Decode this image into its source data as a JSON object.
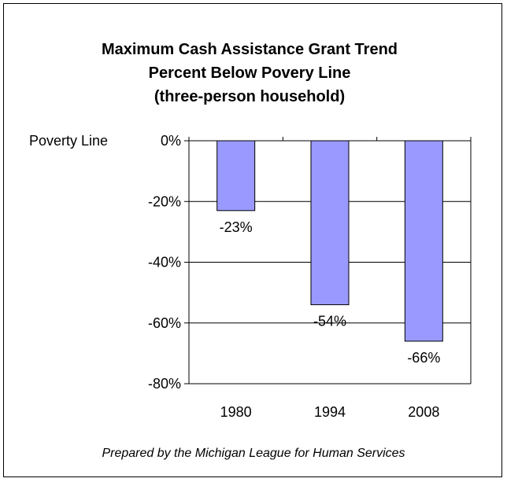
{
  "chart_data": {
    "type": "bar",
    "title_lines": [
      "Maximum Cash Assistance Grant Trend",
      "Percent Below Povery Line",
      "(three-person household)"
    ],
    "categories": [
      "1980",
      "1994",
      "2008"
    ],
    "values": [
      -23,
      -54,
      -66
    ],
    "data_labels": [
      "-23%",
      "-54%",
      "-66%"
    ],
    "ylim": [
      -80,
      0
    ],
    "y_ticks": [
      0,
      -20,
      -40,
      -60,
      -80
    ],
    "y_tick_labels": [
      "0%",
      "-20%",
      "-40%",
      "-60%",
      "-80%"
    ],
    "grid": true,
    "bar_color": "#9999ff",
    "annotation": "Poverty Line",
    "source": "Prepared by the Michigan League for Human Services"
  }
}
